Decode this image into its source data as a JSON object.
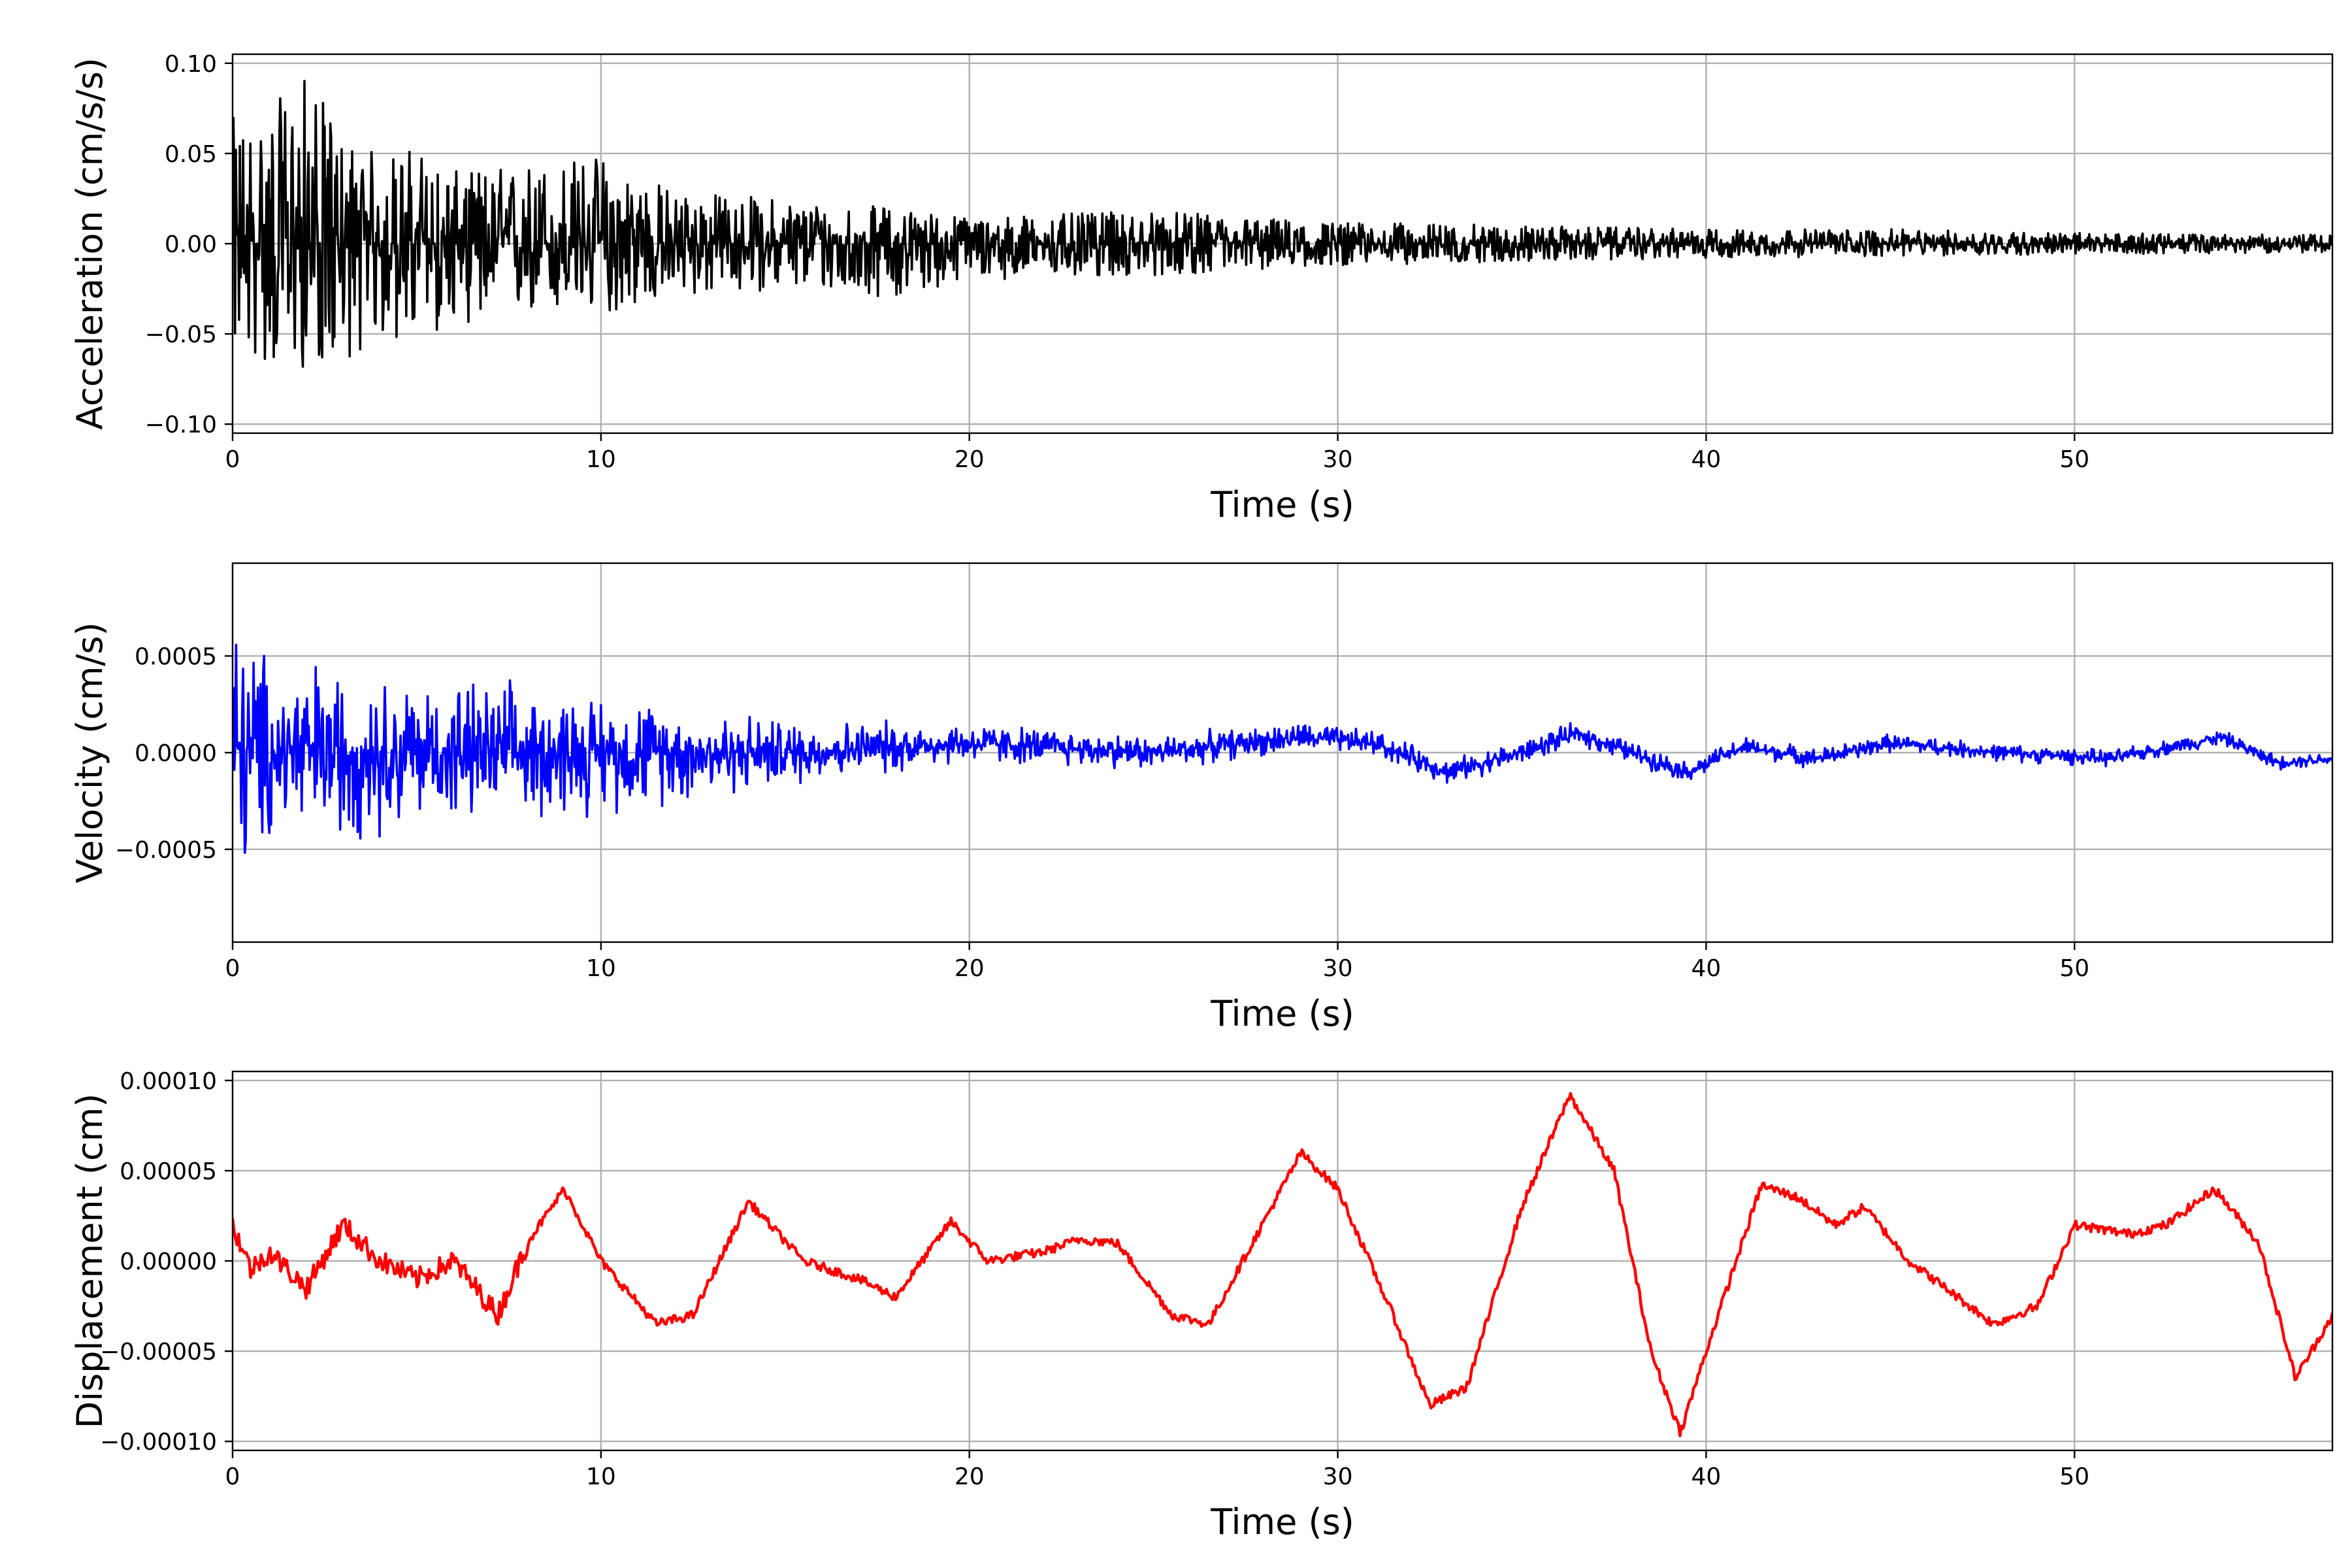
{
  "chart_data": [
    {
      "type": "line",
      "name": "acceleration-panel",
      "xlabel": "Time (s)",
      "ylabel": "Acceleration (cm/s/s)",
      "xlim": [
        0,
        57
      ],
      "ylim": [
        -0.105,
        0.105
      ],
      "grid": true,
      "color": "#000000",
      "xticks": [
        0,
        10,
        20,
        30,
        40,
        50
      ],
      "xtick_labels": [
        "0",
        "10",
        "20",
        "30",
        "40",
        "50"
      ],
      "yticks": [
        -0.1,
        -0.05,
        0.0,
        0.05,
        0.1
      ],
      "ytick_labels": [
        "−0.10",
        "−0.05",
        "0.00",
        "0.05",
        "0.10"
      ],
      "series": [
        {
          "kind": "noise-envelope",
          "x": [
            0,
            1,
            2,
            3,
            4,
            5,
            6,
            8,
            10,
            12,
            15,
            18,
            20,
            25,
            30,
            35,
            40,
            45,
            50,
            55,
            57
          ],
          "upper": [
            0.07,
            0.075,
            0.095,
            0.06,
            0.05,
            0.055,
            0.04,
            0.045,
            0.05,
            0.03,
            0.025,
            0.02,
            0.015,
            0.018,
            0.012,
            0.01,
            0.008,
            0.008,
            0.006,
            0.005,
            0.005
          ],
          "lower": [
            -0.06,
            -0.07,
            -0.07,
            -0.065,
            -0.055,
            -0.055,
            -0.045,
            -0.04,
            -0.04,
            -0.03,
            -0.025,
            -0.03,
            -0.02,
            -0.018,
            -0.012,
            -0.01,
            -0.008,
            -0.007,
            -0.006,
            -0.005,
            -0.005
          ]
        }
      ]
    },
    {
      "type": "line",
      "name": "velocity-panel",
      "xlabel": "Time (s)",
      "ylabel": "Velocity (cm/s)",
      "xlim": [
        0,
        57
      ],
      "ylim": [
        -0.00098,
        0.00098
      ],
      "grid": true,
      "color": "#0000ff",
      "xticks": [
        0,
        10,
        20,
        30,
        40,
        50
      ],
      "xtick_labels": [
        "0",
        "10",
        "20",
        "30",
        "40",
        "50"
      ],
      "yticks": [
        -0.0005,
        0.0,
        0.0005
      ],
      "ytick_labels": [
        "−0.0005",
        "0.0000",
        "0.0005"
      ],
      "series": [
        {
          "kind": "noisy-trend",
          "trend_x": [
            0,
            5,
            10,
            15,
            20,
            25,
            29,
            31,
            33,
            35,
            36.5,
            38,
            39.5,
            41,
            43,
            45,
            48,
            51,
            54,
            55.5,
            57
          ],
          "trend_y": [
            0,
            0,
            0,
            0,
            5e-05,
            0.0,
            8e-05,
            5e-05,
            -0.0001,
            0.0,
            0.0001,
            0.0,
            -0.0001,
            3e-05,
            -3e-05,
            5e-05,
            0.0,
            -3e-05,
            8e-05,
            -5e-05,
            -3e-05
          ],
          "amp_x": [
            0,
            1,
            2,
            3,
            5,
            10,
            15,
            20,
            25,
            30,
            40,
            50,
            57
          ],
          "amp_y": [
            0.0008,
            0.0006,
            0.0006,
            0.0005,
            0.00045,
            0.00035,
            0.0002,
            0.00012,
            0.0001,
            8e-05,
            6e-05,
            5e-05,
            4e-05
          ]
        }
      ]
    },
    {
      "type": "line",
      "name": "displacement-panel",
      "xlabel": "Time (s)",
      "ylabel": "Displacement (cm)",
      "xlim": [
        0,
        57
      ],
      "ylim": [
        -0.000105,
        0.000105
      ],
      "grid": true,
      "color": "#ff0000",
      "xticks": [
        0,
        10,
        20,
        30,
        40,
        50
      ],
      "xtick_labels": [
        "0",
        "10",
        "20",
        "30",
        "40",
        "50"
      ],
      "yticks": [
        -0.0001,
        -5e-05,
        0.0,
        5e-05,
        0.0001
      ],
      "ytick_labels": [
        "−0.00010",
        "−0.00005",
        "0.00000",
        "0.00005",
        "0.00010"
      ],
      "series": [
        {
          "kind": "line",
          "x": [
            0,
            0.5,
            1,
            2,
            3,
            4,
            5,
            6,
            7.2,
            8,
            9,
            10,
            11.5,
            12.5,
            14,
            15.5,
            17,
            18,
            19.5,
            20.5,
            22,
            23,
            24,
            25.5,
            26.5,
            29,
            30,
            31.5,
            32.5,
            33.5,
            35,
            36.3,
            37.5,
            38.5,
            39.3,
            40,
            41.5,
            42.5,
            43.5,
            44.3,
            45.5,
            46.5,
            47.8,
            49,
            50,
            51.5,
            52.5,
            53.8,
            55,
            56,
            57
          ],
          "y": [
            2e-05,
            -5e-06,
            5e-06,
            -1.5e-05,
            2e-05,
            0.0,
            -1e-05,
            0.0,
            -3e-05,
            1e-05,
            4e-05,
            0.0,
            -3.5e-05,
            -3e-05,
            3.3e-05,
            0.0,
            -1e-05,
            -2e-05,
            2.2e-05,
            0.0,
            5e-06,
            1.2e-05,
            1e-05,
            -3e-05,
            -3.5e-05,
            6e-05,
            4e-05,
            -3e-05,
            -8e-05,
            -7e-05,
            3e-05,
            9.2e-05,
            5e-05,
            -5e-05,
            -9.5e-05,
            -5e-05,
            4.2e-05,
            3.5e-05,
            2e-05,
            3e-05,
            0.0,
            -1.5e-05,
            -3.5e-05,
            -2.5e-05,
            2e-05,
            1.5e-05,
            2e-05,
            4e-05,
            1e-05,
            -6.5e-05,
            -3e-05
          ]
        }
      ]
    }
  ]
}
